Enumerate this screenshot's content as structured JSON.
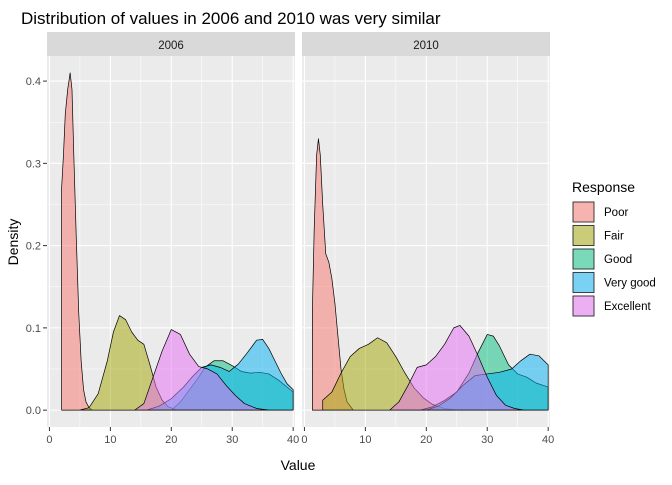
{
  "chart_data": {
    "type": "area",
    "subtype": "density",
    "title": "Distribution of values in 2006 and 2010 was very similar",
    "xlabel": "Value",
    "ylabel": "Density",
    "xlim": [
      0,
      40
    ],
    "ylim": [
      0,
      0.41
    ],
    "x_ticks": [
      "0",
      "10",
      "20",
      "30",
      "40"
    ],
    "y_ticks": [
      "0.0",
      "0.1",
      "0.2",
      "0.3",
      "0.4"
    ],
    "legend": {
      "title": "Response",
      "position": "right"
    },
    "grid": true,
    "series": [
      {
        "name": "Poor",
        "color": "#F8766D"
      },
      {
        "name": "Fair",
        "color": "#A3A500"
      },
      {
        "name": "Good",
        "color": "#00BF7D"
      },
      {
        "name": "Very good",
        "color": "#00B0F6"
      },
      {
        "name": "Excellent",
        "color": "#E76BF3"
      }
    ],
    "panels": [
      {
        "label": "2006",
        "curves": [
          {
            "series": "Poor",
            "points": [
              [
                2,
                0.27
              ],
              [
                2.3,
                0.31
              ],
              [
                2.6,
                0.36
              ],
              [
                3,
                0.39
              ],
              [
                3.4,
                0.41
              ],
              [
                3.7,
                0.39
              ],
              [
                4,
                0.31
              ],
              [
                4.4,
                0.21
              ],
              [
                4.8,
                0.12
              ],
              [
                5.2,
                0.06
              ],
              [
                5.6,
                0.025
              ],
              [
                6,
                0.01
              ],
              [
                6.5,
                0.003
              ],
              [
                7,
                0
              ]
            ]
          },
          {
            "series": "Fair",
            "points": [
              [
                5,
                0
              ],
              [
                6.5,
                0.003
              ],
              [
                8,
                0.02
              ],
              [
                9.5,
                0.06
              ],
              [
                10.5,
                0.095
              ],
              [
                11.5,
                0.115
              ],
              [
                12.5,
                0.11
              ],
              [
                13.5,
                0.095
              ],
              [
                14.5,
                0.085
              ],
              [
                15.5,
                0.08
              ],
              [
                16.5,
                0.055
              ],
              [
                17.5,
                0.028
              ],
              [
                18.5,
                0.012
              ],
              [
                19.5,
                0.004
              ],
              [
                21,
                0
              ]
            ]
          },
          {
            "series": "Good",
            "points": [
              [
                20,
                0
              ],
              [
                21.5,
                0.01
              ],
              [
                23,
                0.025
              ],
              [
                24.5,
                0.04
              ],
              [
                25.5,
                0.052
              ],
              [
                27,
                0.06
              ],
              [
                28.5,
                0.06
              ],
              [
                30,
                0.054
              ],
              [
                31.5,
                0.047
              ],
              [
                33,
                0.045
              ],
              [
                34.5,
                0.046
              ],
              [
                36,
                0.044
              ],
              [
                37.5,
                0.037
              ],
              [
                39,
                0.028
              ],
              [
                40,
                0.022
              ]
            ]
          },
          {
            "series": "Very good",
            "points": [
              [
                16,
                0
              ],
              [
                18,
                0.005
              ],
              [
                20,
                0.014
              ],
              [
                22,
                0.028
              ],
              [
                23.5,
                0.041
              ],
              [
                25,
                0.052
              ],
              [
                26.5,
                0.055
              ],
              [
                28,
                0.052
              ],
              [
                29.5,
                0.047
              ],
              [
                31,
                0.056
              ],
              [
                32.5,
                0.07
              ],
              [
                34,
                0.085
              ],
              [
                35,
                0.086
              ],
              [
                36,
                0.075
              ],
              [
                37,
                0.06
              ],
              [
                38,
                0.045
              ],
              [
                39,
                0.032
              ],
              [
                40,
                0.025
              ]
            ]
          },
          {
            "series": "Excellent",
            "points": [
              [
                14,
                0
              ],
              [
                15.5,
                0.008
              ],
              [
                17,
                0.04
              ],
              [
                18.5,
                0.072
              ],
              [
                20,
                0.098
              ],
              [
                21.5,
                0.092
              ],
              [
                23,
                0.068
              ],
              [
                24.5,
                0.053
              ],
              [
                26,
                0.05
              ],
              [
                27.5,
                0.044
              ],
              [
                29,
                0.03
              ],
              [
                30.5,
                0.018
              ],
              [
                32,
                0.008
              ],
              [
                34,
                0.002
              ],
              [
                36,
                0
              ]
            ]
          }
        ]
      },
      {
        "label": "2010",
        "curves": [
          {
            "series": "Poor",
            "points": [
              [
                1.3,
                0.12
              ],
              [
                1.6,
                0.22
              ],
              [
                2,
                0.31
              ],
              [
                2.3,
                0.33
              ],
              [
                2.6,
                0.31
              ],
              [
                3,
                0.25
              ],
              [
                3.5,
                0.19
              ],
              [
                4,
                0.18
              ],
              [
                4.5,
                0.16
              ],
              [
                5,
                0.13
              ],
              [
                5.5,
                0.09
              ],
              [
                6,
                0.05
              ],
              [
                6.5,
                0.025
              ],
              [
                7,
                0.01
              ],
              [
                8,
                0
              ]
            ]
          },
          {
            "series": "Fair",
            "points": [
              [
                3,
                0.012
              ],
              [
                4.5,
                0.022
              ],
              [
                6,
                0.045
              ],
              [
                7.5,
                0.065
              ],
              [
                9,
                0.075
              ],
              [
                10.5,
                0.08
              ],
              [
                12,
                0.088
              ],
              [
                13.5,
                0.082
              ],
              [
                15,
                0.065
              ],
              [
                16.5,
                0.045
              ],
              [
                18,
                0.027
              ],
              [
                19.5,
                0.015
              ],
              [
                21,
                0.007
              ],
              [
                23,
                0.002
              ],
              [
                25,
                0
              ]
            ]
          },
          {
            "series": "Good",
            "points": [
              [
                19,
                0
              ],
              [
                21,
                0.004
              ],
              [
                23,
                0.012
              ],
              [
                25,
                0.022
              ],
              [
                27,
                0.045
              ],
              [
                28.5,
                0.07
              ],
              [
                30,
                0.092
              ],
              [
                31,
                0.09
              ],
              [
                32,
                0.078
              ],
              [
                33.5,
                0.055
              ],
              [
                35,
                0.044
              ],
              [
                36.5,
                0.04
              ],
              [
                38,
                0.033
              ],
              [
                40,
                0.028
              ]
            ]
          },
          {
            "series": "Very good",
            "points": [
              [
                20,
                0
              ],
              [
                22,
                0.005
              ],
              [
                24,
                0.015
              ],
              [
                26,
                0.03
              ],
              [
                28,
                0.042
              ],
              [
                30,
                0.044
              ],
              [
                32,
                0.046
              ],
              [
                34,
                0.05
              ],
              [
                35.5,
                0.06
              ],
              [
                37,
                0.068
              ],
              [
                38.5,
                0.066
              ],
              [
                40,
                0.055
              ]
            ]
          },
          {
            "series": "Excellent",
            "points": [
              [
                14,
                0
              ],
              [
                15.5,
                0.01
              ],
              [
                17,
                0.03
              ],
              [
                18.5,
                0.052
              ],
              [
                20,
                0.055
              ],
              [
                21.5,
                0.065
              ],
              [
                23,
                0.08
              ],
              [
                24.5,
                0.1
              ],
              [
                25.5,
                0.103
              ],
              [
                27,
                0.09
              ],
              [
                28.5,
                0.066
              ],
              [
                30,
                0.04
              ],
              [
                31.5,
                0.018
              ],
              [
                33,
                0.006
              ],
              [
                34.5,
                0.002
              ],
              [
                36,
                0
              ]
            ]
          }
        ]
      }
    ]
  }
}
